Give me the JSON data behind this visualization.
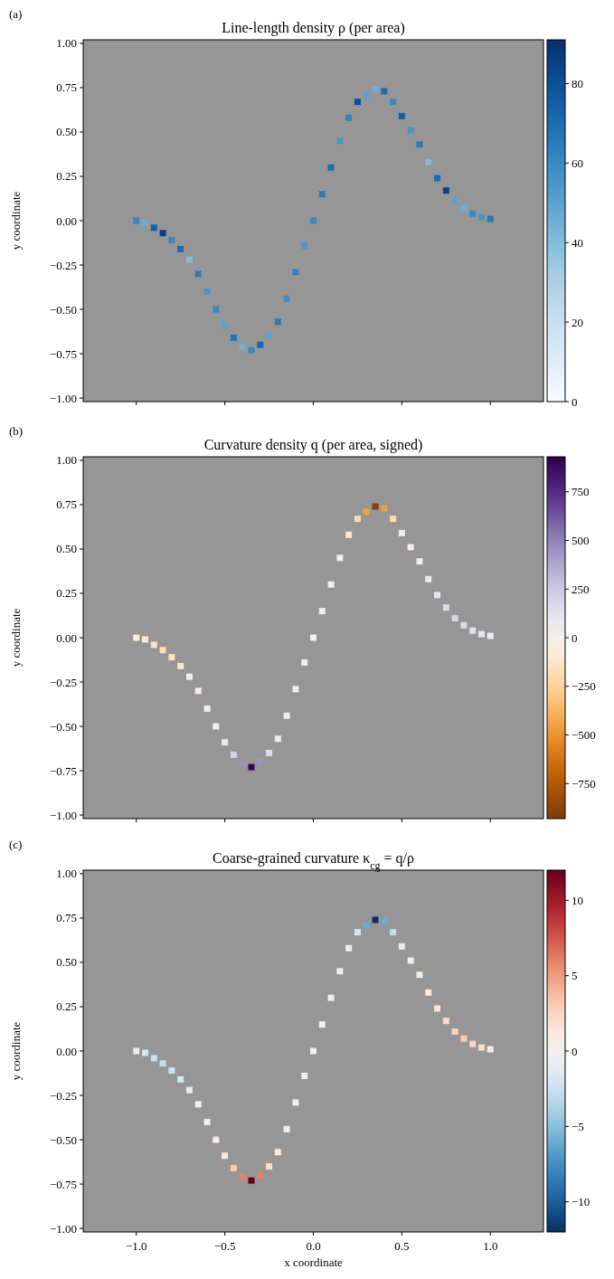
{
  "chart_data": [
    {
      "type": "scatter",
      "title": "Line-length density ρ (per area)",
      "ylabel": "y coordinate",
      "annotations": [
        "(a)"
      ],
      "marker": "square",
      "tick_labels": "y",
      "xlim": [
        -1.3,
        1.3
      ],
      "ylim": [
        -1.02,
        1.02
      ],
      "xticks": [
        {
          "value": -1,
          "label": null
        },
        {
          "value": -0.5,
          "label": null
        },
        {
          "value": 0,
          "label": null
        },
        {
          "value": 0.5,
          "label": null
        },
        {
          "value": 1,
          "label": null
        }
      ],
      "yticks": [
        {
          "value": -1,
          "label": "−1.00"
        },
        {
          "value": -0.75,
          "label": "−0.75"
        },
        {
          "value": -0.5,
          "label": "−0.50"
        },
        {
          "value": -0.25,
          "label": "−0.25"
        },
        {
          "value": 0,
          "label": "0.00"
        },
        {
          "value": 0.25,
          "label": "0.25"
        },
        {
          "value": 0.5,
          "label": "0.50"
        },
        {
          "value": 0.75,
          "label": "0.75"
        },
        {
          "value": 1,
          "label": "1.00"
        }
      ],
      "clim": [
        0,
        91
      ],
      "cticks": [
        0,
        20,
        40,
        60,
        80
      ],
      "x": [
        -1,
        -0.95,
        -0.9,
        -0.85,
        -0.8,
        -0.75,
        -0.7,
        -0.65,
        -0.6,
        -0.55,
        -0.5,
        -0.45,
        -0.4,
        -0.35,
        -0.3,
        -0.25,
        -0.2,
        -0.15,
        -0.1,
        -0.05,
        0,
        0.05,
        0.1,
        0.15,
        0.2,
        0.25,
        0.3,
        0.35,
        0.4,
        0.45,
        0.5,
        0.55,
        0.6,
        0.65,
        0.7,
        0.75,
        0.8,
        0.85,
        0.9,
        0.95,
        1
      ],
      "values": [
        0,
        -0.01,
        -0.04,
        -0.07,
        -0.11,
        -0.16,
        -0.22,
        -0.3,
        -0.4,
        -0.5,
        -0.59,
        -0.66,
        -0.71,
        -0.73,
        -0.7,
        -0.65,
        -0.57,
        -0.44,
        -0.29,
        -0.14,
        0,
        0.15,
        0.3,
        0.45,
        0.58,
        0.67,
        0.71,
        0.74,
        0.73,
        0.67,
        0.59,
        0.51,
        0.43,
        0.33,
        0.24,
        0.17,
        0.11,
        0.07,
        0.04,
        0.02,
        0.01
      ],
      "cvalues": [
        60,
        45,
        75,
        85,
        60,
        70,
        40,
        65,
        55,
        60,
        50,
        68,
        45,
        60,
        72,
        50,
        65,
        58,
        62,
        55,
        60,
        65,
        70,
        55,
        62,
        80,
        50,
        45,
        70,
        60,
        75,
        55,
        65,
        40,
        70,
        85,
        50,
        45,
        60,
        55,
        65
      ]
    },
    {
      "type": "scatter",
      "title": "Curvature density q (per area, signed)",
      "ylabel": "y coordinate",
      "annotations": [
        "(b)"
      ],
      "marker": "square",
      "tick_labels": "y",
      "xlim": [
        -1.3,
        1.3
      ],
      "ylim": [
        -1.02,
        1.02
      ],
      "xticks": [
        {
          "value": -1,
          "label": null
        },
        {
          "value": -0.5,
          "label": null
        },
        {
          "value": 0,
          "label": null
        },
        {
          "value": 0.5,
          "label": null
        },
        {
          "value": 1,
          "label": null
        }
      ],
      "yticks": [
        {
          "value": -1,
          "label": "−1.00"
        },
        {
          "value": -0.75,
          "label": "−0.75"
        },
        {
          "value": -0.5,
          "label": "−0.50"
        },
        {
          "value": -0.25,
          "label": "−0.25"
        },
        {
          "value": 0,
          "label": "0.00"
        },
        {
          "value": 0.25,
          "label": "0.25"
        },
        {
          "value": 0.5,
          "label": "0.50"
        },
        {
          "value": 0.75,
          "label": "0.75"
        },
        {
          "value": 1,
          "label": "1.00"
        }
      ],
      "clim": [
        -930,
        930
      ],
      "cticks": [
        {
          "value": -750,
          "label": "−750"
        },
        {
          "value": -500,
          "label": "−500"
        },
        {
          "value": -250,
          "label": "−250"
        },
        0,
        250,
        500,
        750
      ],
      "x": [
        -1,
        -0.95,
        -0.9,
        -0.85,
        -0.8,
        -0.75,
        -0.7,
        -0.65,
        -0.6,
        -0.55,
        -0.5,
        -0.45,
        -0.4,
        -0.35,
        -0.3,
        -0.25,
        -0.2,
        -0.15,
        -0.1,
        -0.05,
        0,
        0.05,
        0.1,
        0.15,
        0.2,
        0.25,
        0.3,
        0.35,
        0.4,
        0.45,
        0.5,
        0.55,
        0.6,
        0.65,
        0.7,
        0.75,
        0.8,
        0.85,
        0.9,
        0.95,
        1
      ],
      "values": [
        0,
        -0.01,
        -0.04,
        -0.07,
        -0.11,
        -0.16,
        -0.22,
        -0.3,
        -0.4,
        -0.5,
        -0.59,
        -0.66,
        -0.71,
        -0.73,
        -0.7,
        -0.65,
        -0.57,
        -0.44,
        -0.29,
        -0.14,
        0,
        0.15,
        0.3,
        0.45,
        0.58,
        0.67,
        0.71,
        0.74,
        0.73,
        0.67,
        0.59,
        0.51,
        0.43,
        0.33,
        0.24,
        0.17,
        0.11,
        0.07,
        0.04,
        0.02,
        0.01
      ],
      "cvalues": [
        -60,
        -100,
        -150,
        -180,
        -150,
        -100,
        -50,
        -20,
        0,
        30,
        80,
        200,
        450,
        900,
        450,
        150,
        50,
        20,
        0,
        0,
        0,
        0,
        0,
        -20,
        -100,
        -200,
        -450,
        -900,
        -450,
        -200,
        -50,
        0,
        50,
        80,
        100,
        150,
        180,
        150,
        120,
        100,
        60
      ]
    },
    {
      "type": "scatter",
      "title": "Coarse-grained curvature κ$_{cg}$ = q/ρ",
      "xlabel": "x coordinate",
      "ylabel": "y coordinate",
      "annotations": [
        "(c)"
      ],
      "marker": "square",
      "xlim": [
        -1.3,
        1.3
      ],
      "ylim": [
        -1.02,
        1.02
      ],
      "xticks": [
        {
          "value": -1,
          "label": "−1.0"
        },
        {
          "value": -0.5,
          "label": "−0.5"
        },
        {
          "value": 0,
          "label": "0.0"
        },
        {
          "value": 0.5,
          "label": "0.5"
        },
        {
          "value": 1,
          "label": "1.0"
        }
      ],
      "yticks": [
        {
          "value": -1,
          "label": "−1.00"
        },
        {
          "value": -0.75,
          "label": "−0.75"
        },
        {
          "value": -0.5,
          "label": "−0.50"
        },
        {
          "value": -0.25,
          "label": "−0.25"
        },
        {
          "value": 0,
          "label": "0.00"
        },
        {
          "value": 0.25,
          "label": "0.25"
        },
        {
          "value": 0.5,
          "label": "0.50"
        },
        {
          "value": 0.75,
          "label": "0.75"
        },
        {
          "value": 1,
          "label": "1.00"
        }
      ],
      "clim": [
        -12,
        12
      ],
      "cticks": [
        {
          "value": -10,
          "label": "−10"
        },
        {
          "value": -5,
          "label": "−5"
        },
        0,
        5,
        10
      ],
      "x": [
        -1,
        -0.95,
        -0.9,
        -0.85,
        -0.8,
        -0.75,
        -0.7,
        -0.65,
        -0.6,
        -0.55,
        -0.5,
        -0.45,
        -0.4,
        -0.35,
        -0.3,
        -0.25,
        -0.2,
        -0.15,
        -0.1,
        -0.05,
        0,
        0.05,
        0.1,
        0.15,
        0.2,
        0.25,
        0.3,
        0.35,
        0.4,
        0.45,
        0.5,
        0.55,
        0.6,
        0.65,
        0.7,
        0.75,
        0.8,
        0.85,
        0.9,
        0.95,
        1
      ],
      "values": [
        0,
        -0.01,
        -0.04,
        -0.07,
        -0.11,
        -0.16,
        -0.22,
        -0.3,
        -0.4,
        -0.5,
        -0.59,
        -0.66,
        -0.71,
        -0.73,
        -0.7,
        -0.65,
        -0.57,
        -0.44,
        -0.29,
        -0.14,
        0,
        0.15,
        0.3,
        0.45,
        0.58,
        0.67,
        0.71,
        0.74,
        0.73,
        0.67,
        0.59,
        0.51,
        0.43,
        0.33,
        0.24,
        0.17,
        0.11,
        0.07,
        0.04,
        0.02,
        0.01
      ],
      "cvalues": [
        -1,
        -2,
        -2.5,
        -3,
        -2.5,
        -2,
        -1,
        -0.5,
        0,
        0.5,
        1,
        3,
        6,
        12,
        6,
        2,
        1,
        0.5,
        0,
        0,
        0,
        0,
        0,
        -0.5,
        -1,
        -2,
        -6,
        -12,
        -6,
        -3,
        -1,
        0,
        0.5,
        1,
        1.5,
        2,
        2.5,
        3,
        2.5,
        2,
        1
      ]
    }
  ]
}
